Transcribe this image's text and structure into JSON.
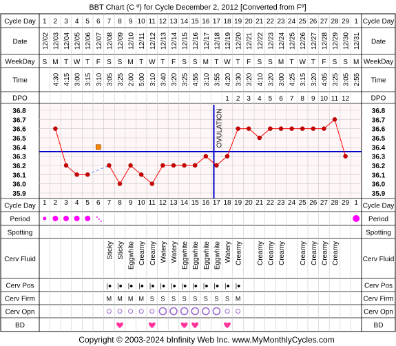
{
  "title": "BBT Chart (C º) for Cycle December 2, 2012  [Converted from Fº]",
  "copyright": "Copyright © 2003-2024 bInfinity Web Inc.    www.MyMonthlyCycles.com",
  "row_labels": {
    "cycle_day": "Cycle Day",
    "date": "Date",
    "weekday": "WeekDay",
    "time": "Time",
    "dpo": "DPO",
    "period": "Period",
    "spotting": "Spotting",
    "cerv_fluid": "Cerv Fluid",
    "cerv_pos": "Cerv Pos",
    "cerv_firm": "Cerv Firm",
    "cerv_opn": "Cerv Opn",
    "bd": "BD"
  },
  "ovulation_label": "OVULATION",
  "colors": {
    "grid_bg": "#fff7f7",
    "grid_line": "#c8c8c8",
    "temp_line": "#ff0000",
    "temp_point": "#cc0000",
    "coverline": "#0000cc",
    "ovulation_line": "#0000cc",
    "period_dot": "#ff00ff",
    "heart": "#ff3399",
    "cerv_marker": "#9966cc",
    "excluded_point": "#ff8800"
  },
  "chart_data": {
    "type": "line",
    "ylim": [
      35.9,
      36.8
    ],
    "yticks": [
      "36.8",
      "36.7",
      "36.6",
      "36.5",
      "36.4",
      "36.3",
      "36.2",
      "36.1",
      "36.0",
      "35.9"
    ],
    "coverline": 36.35,
    "ovulation_day": 17,
    "days": [
      "1",
      "2",
      "3",
      "4",
      "5",
      "6",
      "7",
      "8",
      "9",
      "10",
      "11",
      "12",
      "13",
      "14",
      "15",
      "16",
      "17",
      "18",
      "19",
      "20",
      "21",
      "22",
      "23",
      "24",
      "25",
      "26",
      "27",
      "28",
      "29",
      "1"
    ],
    "dates": [
      "12/02",
      "12/03",
      "12/04",
      "12/05",
      "12/06",
      "12/07",
      "12/08",
      "12/09",
      "12/10",
      "12/11",
      "12/12",
      "12/13",
      "12/14",
      "12/15",
      "12/16",
      "12/17",
      "12/18",
      "12/19",
      "12/20",
      "12/21",
      "12/22",
      "12/23",
      "12/24",
      "12/25",
      "12/26",
      "12/27",
      "12/28",
      "12/29",
      "12/30",
      "12/31"
    ],
    "weekdays": [
      "S",
      "M",
      "T",
      "W",
      "T",
      "F",
      "S",
      "S",
      "M",
      "T",
      "W",
      "T",
      "F",
      "S",
      "S",
      "M",
      "T",
      "W",
      "T",
      "F",
      "S",
      "S",
      "M",
      "T",
      "W",
      "T",
      "F",
      "S",
      "S",
      "M"
    ],
    "times": [
      "",
      "4:30",
      "4:15",
      "3:00",
      "3:15",
      "3:10",
      "3:05",
      "3:25",
      "2:00",
      "5:00",
      "3:10",
      "3:40",
      "3:20",
      "3:25",
      "4:55",
      "3:10",
      "3:55",
      "4:20",
      "3:30",
      "3:20",
      "4:10",
      "3:20",
      "3:00",
      "4:25",
      "3:15",
      "3:20",
      "4:05",
      "3:25",
      "3:05",
      "2:55"
    ],
    "dpo": [
      "",
      "",
      "",
      "",
      "",
      "",
      "",
      "",
      "",
      "",
      "",
      "",
      "",
      "",
      "",
      "",
      "",
      "1",
      "2",
      "3",
      "4",
      "5",
      "6",
      "7",
      "8",
      "9",
      "10",
      "11",
      "12",
      ""
    ],
    "temps": [
      null,
      36.6,
      36.2,
      36.1,
      36.1,
      null,
      36.2,
      36.0,
      36.2,
      36.1,
      36.0,
      36.2,
      36.2,
      36.2,
      36.2,
      36.3,
      36.2,
      36.3,
      36.6,
      36.6,
      36.5,
      36.6,
      36.6,
      36.6,
      36.6,
      36.6,
      36.6,
      36.7,
      36.3,
      null
    ],
    "excluded": [
      {
        "day_index": 5,
        "temp": 36.4
      }
    ],
    "period": [
      1,
      1,
      1,
      1,
      1,
      2,
      0,
      0,
      0,
      0,
      0,
      0,
      0,
      0,
      0,
      0,
      0,
      0,
      0,
      0,
      0,
      0,
      0,
      0,
      0,
      0,
      0,
      0,
      0,
      1
    ],
    "cerv_fluid": [
      "",
      "",
      "",
      "",
      "",
      "",
      "Sticky",
      "Sticky",
      "Eggwhite",
      "Creamy",
      "Creamy",
      "Watery",
      "Watery",
      "Eggwhite",
      "Eggwhite",
      "Eggwhite",
      "Eggwhite",
      "Watery",
      "Creamy",
      "",
      "Creamy",
      "Creamy",
      "Creamy",
      "",
      "Creamy",
      "Creamy",
      "Creamy",
      "Creamy",
      "",
      ""
    ],
    "cerv_pos": [
      "",
      "",
      "",
      "",
      "",
      "",
      "|●",
      "|●",
      "|●",
      "|●",
      "|●",
      "|●",
      "|●",
      "|●",
      "|●",
      "|●",
      "|●",
      "|●",
      "|●",
      "",
      "",
      "",
      "",
      "",
      "",
      "",
      "",
      "",
      "",
      ""
    ],
    "cerv_firm": [
      "",
      "",
      "",
      "",
      "",
      "",
      "M",
      "M",
      "M",
      "M",
      "S",
      "S",
      "S",
      "S",
      "S",
      "S",
      "S",
      "S",
      "M",
      "",
      "",
      "",
      "",
      "",
      "",
      "",
      "",
      "",
      "",
      ""
    ],
    "cerv_opn": [
      "",
      "",
      "",
      "",
      "",
      "",
      "o",
      "o",
      "o",
      "o",
      "o",
      "O",
      "O",
      "O",
      "O",
      "O",
      "O",
      "o",
      "o",
      "",
      "",
      "",
      "",
      "",
      "",
      "",
      "",
      "",
      "",
      ""
    ],
    "bd": [
      0,
      0,
      0,
      0,
      0,
      0,
      0,
      1,
      0,
      0,
      1,
      0,
      0,
      1,
      1,
      0,
      0,
      1,
      0,
      0,
      0,
      0,
      0,
      0,
      0,
      0,
      0,
      0,
      0,
      0
    ]
  }
}
